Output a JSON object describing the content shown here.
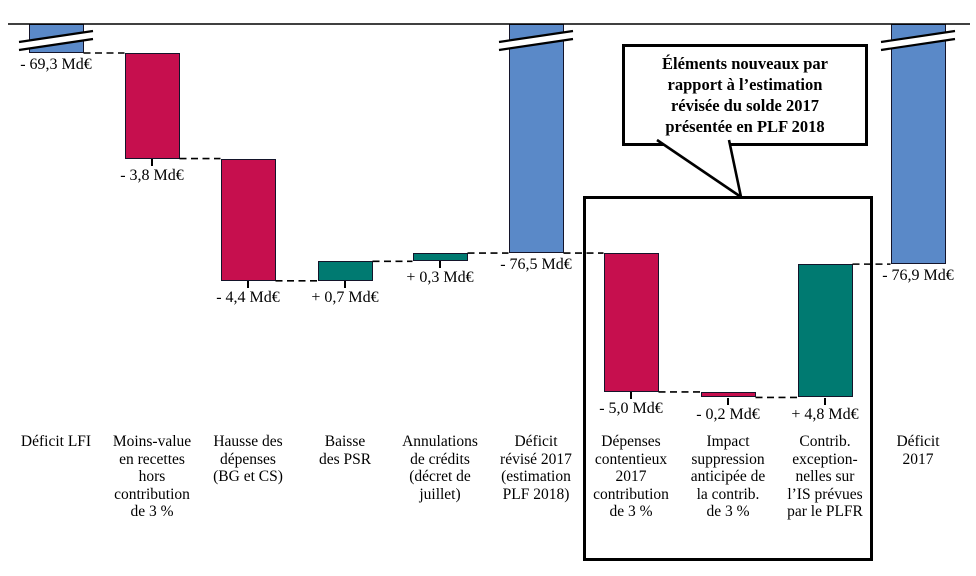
{
  "chart_data": {
    "type": "waterfall",
    "title": "",
    "unit": "Md€",
    "axis_break_on_totals": true,
    "legend_position": "none",
    "grid": false,
    "colors": {
      "total": "#5a89c8",
      "decrease": "#c60f4e",
      "increase": "#007a71"
    },
    "callout": "Éléments nouveaux par\nrapport à l’estimation\nrévisée du solde 2017\nprésentée en PLF 2018",
    "highlight_box_bar_indexes": [
      6,
      7,
      8
    ],
    "bars": [
      {
        "category": "Déficit LFI",
        "value": -69.3,
        "value_label": "- 69,3 Md€",
        "role": "total"
      },
      {
        "category": "Moins-value\nen recettes\nhors\ncontribution\nde 3 %",
        "value": -3.8,
        "value_label": "- 3,8 Md€",
        "role": "flow"
      },
      {
        "category": "Hausse des\ndépenses\n(BG et CS)",
        "value": -4.4,
        "value_label": "- 4,4 Md€",
        "role": "flow"
      },
      {
        "category": "Baisse\ndes PSR",
        "value": 0.7,
        "value_label": "+ 0,7 Md€",
        "role": "flow"
      },
      {
        "category": "Annulations\nde crédits\n(décret de\njuillet)",
        "value": 0.3,
        "value_label": "+ 0,3 Md€",
        "role": "flow"
      },
      {
        "category": "Déficit\nrévisé 2017\n(estimation\nPLF 2018)",
        "value": -76.5,
        "value_label": "- 76,5 Md€",
        "role": "total"
      },
      {
        "category": "Dépenses\ncontentieux\n2017\ncontribution\nde 3 %",
        "value": -5.0,
        "value_label": "- 5,0 Md€",
        "role": "flow"
      },
      {
        "category": "Impact\nsuppression\nanticipée de\nla contrib.\nde 3 %",
        "value": -0.2,
        "value_label": "- 0,2 Md€",
        "role": "flow"
      },
      {
        "category": "Contrib.\nexception-\nnelles sur\nl’IS prévues\npar le PLFR",
        "value": 4.8,
        "value_label": "+ 4,8 Md€",
        "role": "flow"
      },
      {
        "category": "Déficit\n2017",
        "value": -76.9,
        "value_label": "- 76,9 Md€",
        "role": "total"
      }
    ]
  }
}
